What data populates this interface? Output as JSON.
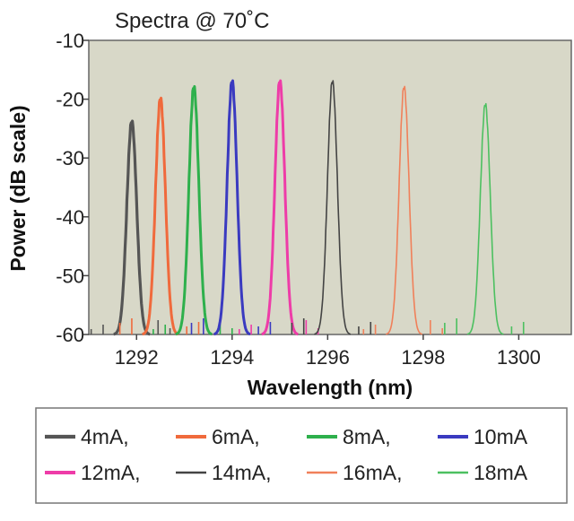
{
  "chart_data": {
    "type": "line",
    "title": "Spectra @ 70˚C",
    "xlabel": "Wavelength (nm)",
    "ylabel": "Power (dB scale)",
    "xlim": [
      1291.0,
      1301.1
    ],
    "ylim": [
      -60,
      -10
    ],
    "xticks": [
      1292,
      1294,
      1296,
      1298,
      1300
    ],
    "xtick_labels": [
      "1292",
      "1294",
      "1296",
      "1298",
      "1300"
    ],
    "yticks": [
      -10,
      -20,
      -30,
      -40,
      -50,
      -60
    ],
    "ytick_labels": [
      "-10",
      "-20",
      "-30",
      "-40",
      "-50",
      "-60"
    ],
    "grid": false,
    "plot_background": "#d8d8c8",
    "legend_position": "bottom",
    "series": [
      {
        "name": "4mA,",
        "color": "#555555",
        "peak_x": 1291.9,
        "peak_y": -23,
        "linewidth": 3.2
      },
      {
        "name": "6mA,",
        "color": "#f06a3c",
        "peak_x": 1292.5,
        "peak_y": -19,
        "linewidth": 3.0
      },
      {
        "name": "8mA,",
        "color": "#2eb04c",
        "peak_x": 1293.2,
        "peak_y": -17,
        "linewidth": 3.0
      },
      {
        "name": "10mA",
        "color": "#3a3ac0",
        "peak_x": 1294.0,
        "peak_y": -16,
        "linewidth": 3.0
      },
      {
        "name": "12mA,",
        "color": "#ee3ca8",
        "peak_x": 1295.0,
        "peak_y": -16,
        "linewidth": 3.0
      },
      {
        "name": "14mA,",
        "color": "#444444",
        "peak_x": 1296.1,
        "peak_y": -16,
        "linewidth": 1.6
      },
      {
        "name": "16mA,",
        "color": "#f0805a",
        "peak_x": 1297.6,
        "peak_y": -17,
        "linewidth": 1.6
      },
      {
        "name": "18mA",
        "color": "#4cc060",
        "peak_x": 1299.3,
        "peak_y": -20,
        "linewidth": 1.6
      }
    ]
  }
}
